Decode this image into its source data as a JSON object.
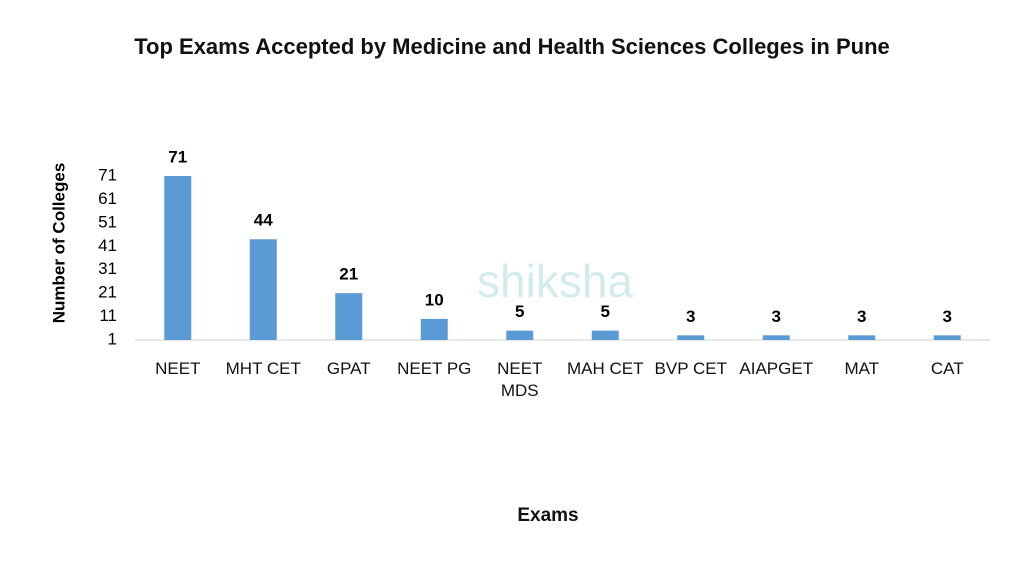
{
  "chart_data": {
    "type": "bar",
    "title": "Top Exams Accepted by Medicine and Health Sciences Colleges in Pune",
    "x_label": "Exams",
    "y_label": "Number of Colleges",
    "watermark": "shiksha",
    "categories": [
      "NEET",
      "MHT CET",
      "GPAT",
      "NEET PG",
      "NEET MDS",
      "MAH CET",
      "BVP CET",
      "AIAPGET",
      "MAT",
      "CAT"
    ],
    "values": [
      71,
      44,
      21,
      10,
      5,
      5,
      3,
      3,
      3,
      3
    ],
    "color": "#5b9bd5",
    "ylim": [
      1,
      71
    ],
    "yticks": [
      1,
      11,
      21,
      31,
      41,
      51,
      61,
      71
    ],
    "grid": false
  }
}
